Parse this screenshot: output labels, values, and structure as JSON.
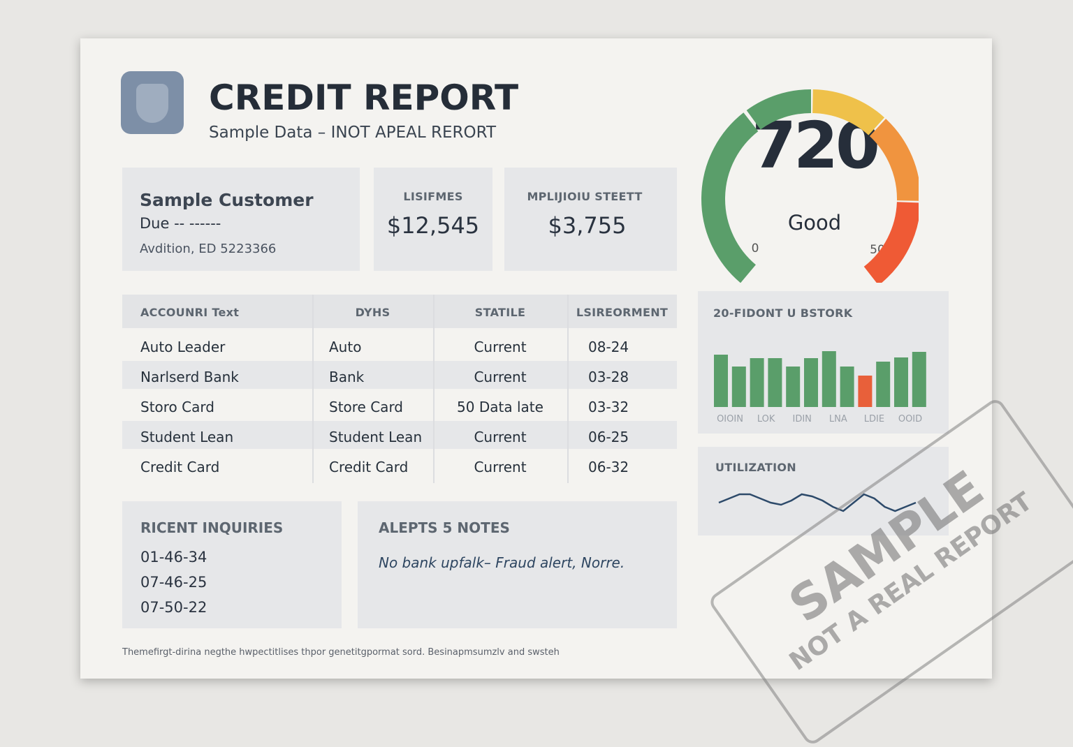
{
  "header": {
    "title": "CREDIT REPORT",
    "subtitle": "Sample Data – INOT APEAL RERORT"
  },
  "customer": {
    "name": "Sample Customer",
    "due": "Due -- ------",
    "address": "Avdition, ED 5223366"
  },
  "stats": [
    {
      "label": "LISIFMES",
      "value": "$12,545"
    },
    {
      "label": "MPLIJIOIU STEETT",
      "value": "$3,755"
    }
  ],
  "score": {
    "value": "720",
    "rating": "Good",
    "min_label": "0",
    "max_label": "50"
  },
  "table": {
    "headers": [
      "ACCOUNRI Text",
      "DYHS",
      "STATILE",
      "LSIREORMENT"
    ],
    "rows": [
      [
        "Auto Leader",
        "Auto",
        "Current",
        "08-24"
      ],
      [
        "Narlserd Bank",
        "Bank",
        "Current",
        "03-28"
      ],
      [
        "Storo Card",
        "Store Card",
        "50 Data late",
        "03-32"
      ],
      [
        "Student Lean",
        "Student Lean",
        "Current",
        "06-25"
      ],
      [
        "Credit Card",
        "Credit Card",
        "Current",
        "06-32"
      ]
    ]
  },
  "history_chart": {
    "type": "bar",
    "title": "20-FIDONT U BSTORK",
    "values": [
      75,
      58,
      70,
      70,
      58,
      70,
      80,
      58,
      45,
      65,
      71,
      79
    ],
    "colors": [
      "#5a9e6a",
      "#5a9e6a",
      "#5a9e6a",
      "#5a9e6a",
      "#5a9e6a",
      "#5a9e6a",
      "#5a9e6a",
      "#5a9e6a",
      "#e8603a",
      "#5a9e6a",
      "#5a9e6a",
      "#5a9e6a"
    ],
    "labels": [
      "OIOIN",
      "LOK",
      "IDIN",
      "LNA",
      "LDIE",
      "OOID"
    ]
  },
  "utilization": {
    "type": "line",
    "title": "UTILIZATION",
    "values": [
      4,
      6,
      8,
      8,
      6,
      4,
      3,
      5,
      8,
      7,
      5,
      2,
      0,
      4,
      8,
      6,
      2,
      0,
      2,
      4
    ],
    "color": "#2d4a6a"
  },
  "inquiries": {
    "title": "RICENT INQUIRIES",
    "items": [
      "01-46-34",
      "07-46-25",
      "07-50-22"
    ]
  },
  "notes": {
    "title": "ALEPTS 5 NOTES",
    "text": "No bank upfalk–  Fraud alert, Norre."
  },
  "footer": "Themefirgt-dirina negthe hwpectitlises thpor genetitgpormat sord. Besinapmsumzlv and swsteh",
  "stamp": {
    "big": "SAMPLE",
    "small": "NOT A REAL REPORT"
  }
}
